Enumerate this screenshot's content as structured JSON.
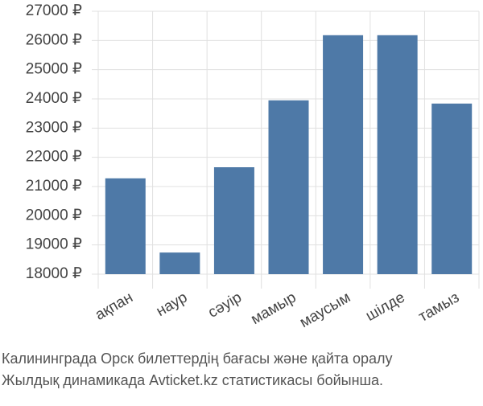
{
  "chart_data": {
    "type": "bar",
    "caption": [
      "Калининграда Орск билеттердің бағасы және қайта оралу",
      "Жылдық динамикада Avticket.kz статистикасы бойынша."
    ],
    "categories": [
      "ақпан",
      "наур",
      "сәуір",
      "мамыр",
      "маусым",
      "шілде",
      "тамыз"
    ],
    "values": [
      21280,
      18740,
      21660,
      23950,
      26180,
      26180,
      23840
    ],
    "color": "#4e79a7",
    "ylim": [
      18000,
      27000
    ],
    "yticks": [
      {
        "value": 18000,
        "label": "18000 ₽"
      },
      {
        "value": 19000,
        "label": "19000 ₽"
      },
      {
        "value": 20000,
        "label": "20000 ₽"
      },
      {
        "value": 21000,
        "label": "21000 ₽"
      },
      {
        "value": 22000,
        "label": "22000 ₽"
      },
      {
        "value": 23000,
        "label": "23000 ₽"
      },
      {
        "value": 24000,
        "label": "24000 ₽"
      },
      {
        "value": 25000,
        "label": "25000 ₽"
      },
      {
        "value": 26000,
        "label": "26000 ₽"
      },
      {
        "value": 27000,
        "label": "27000 ₽"
      }
    ],
    "grid": true
  }
}
